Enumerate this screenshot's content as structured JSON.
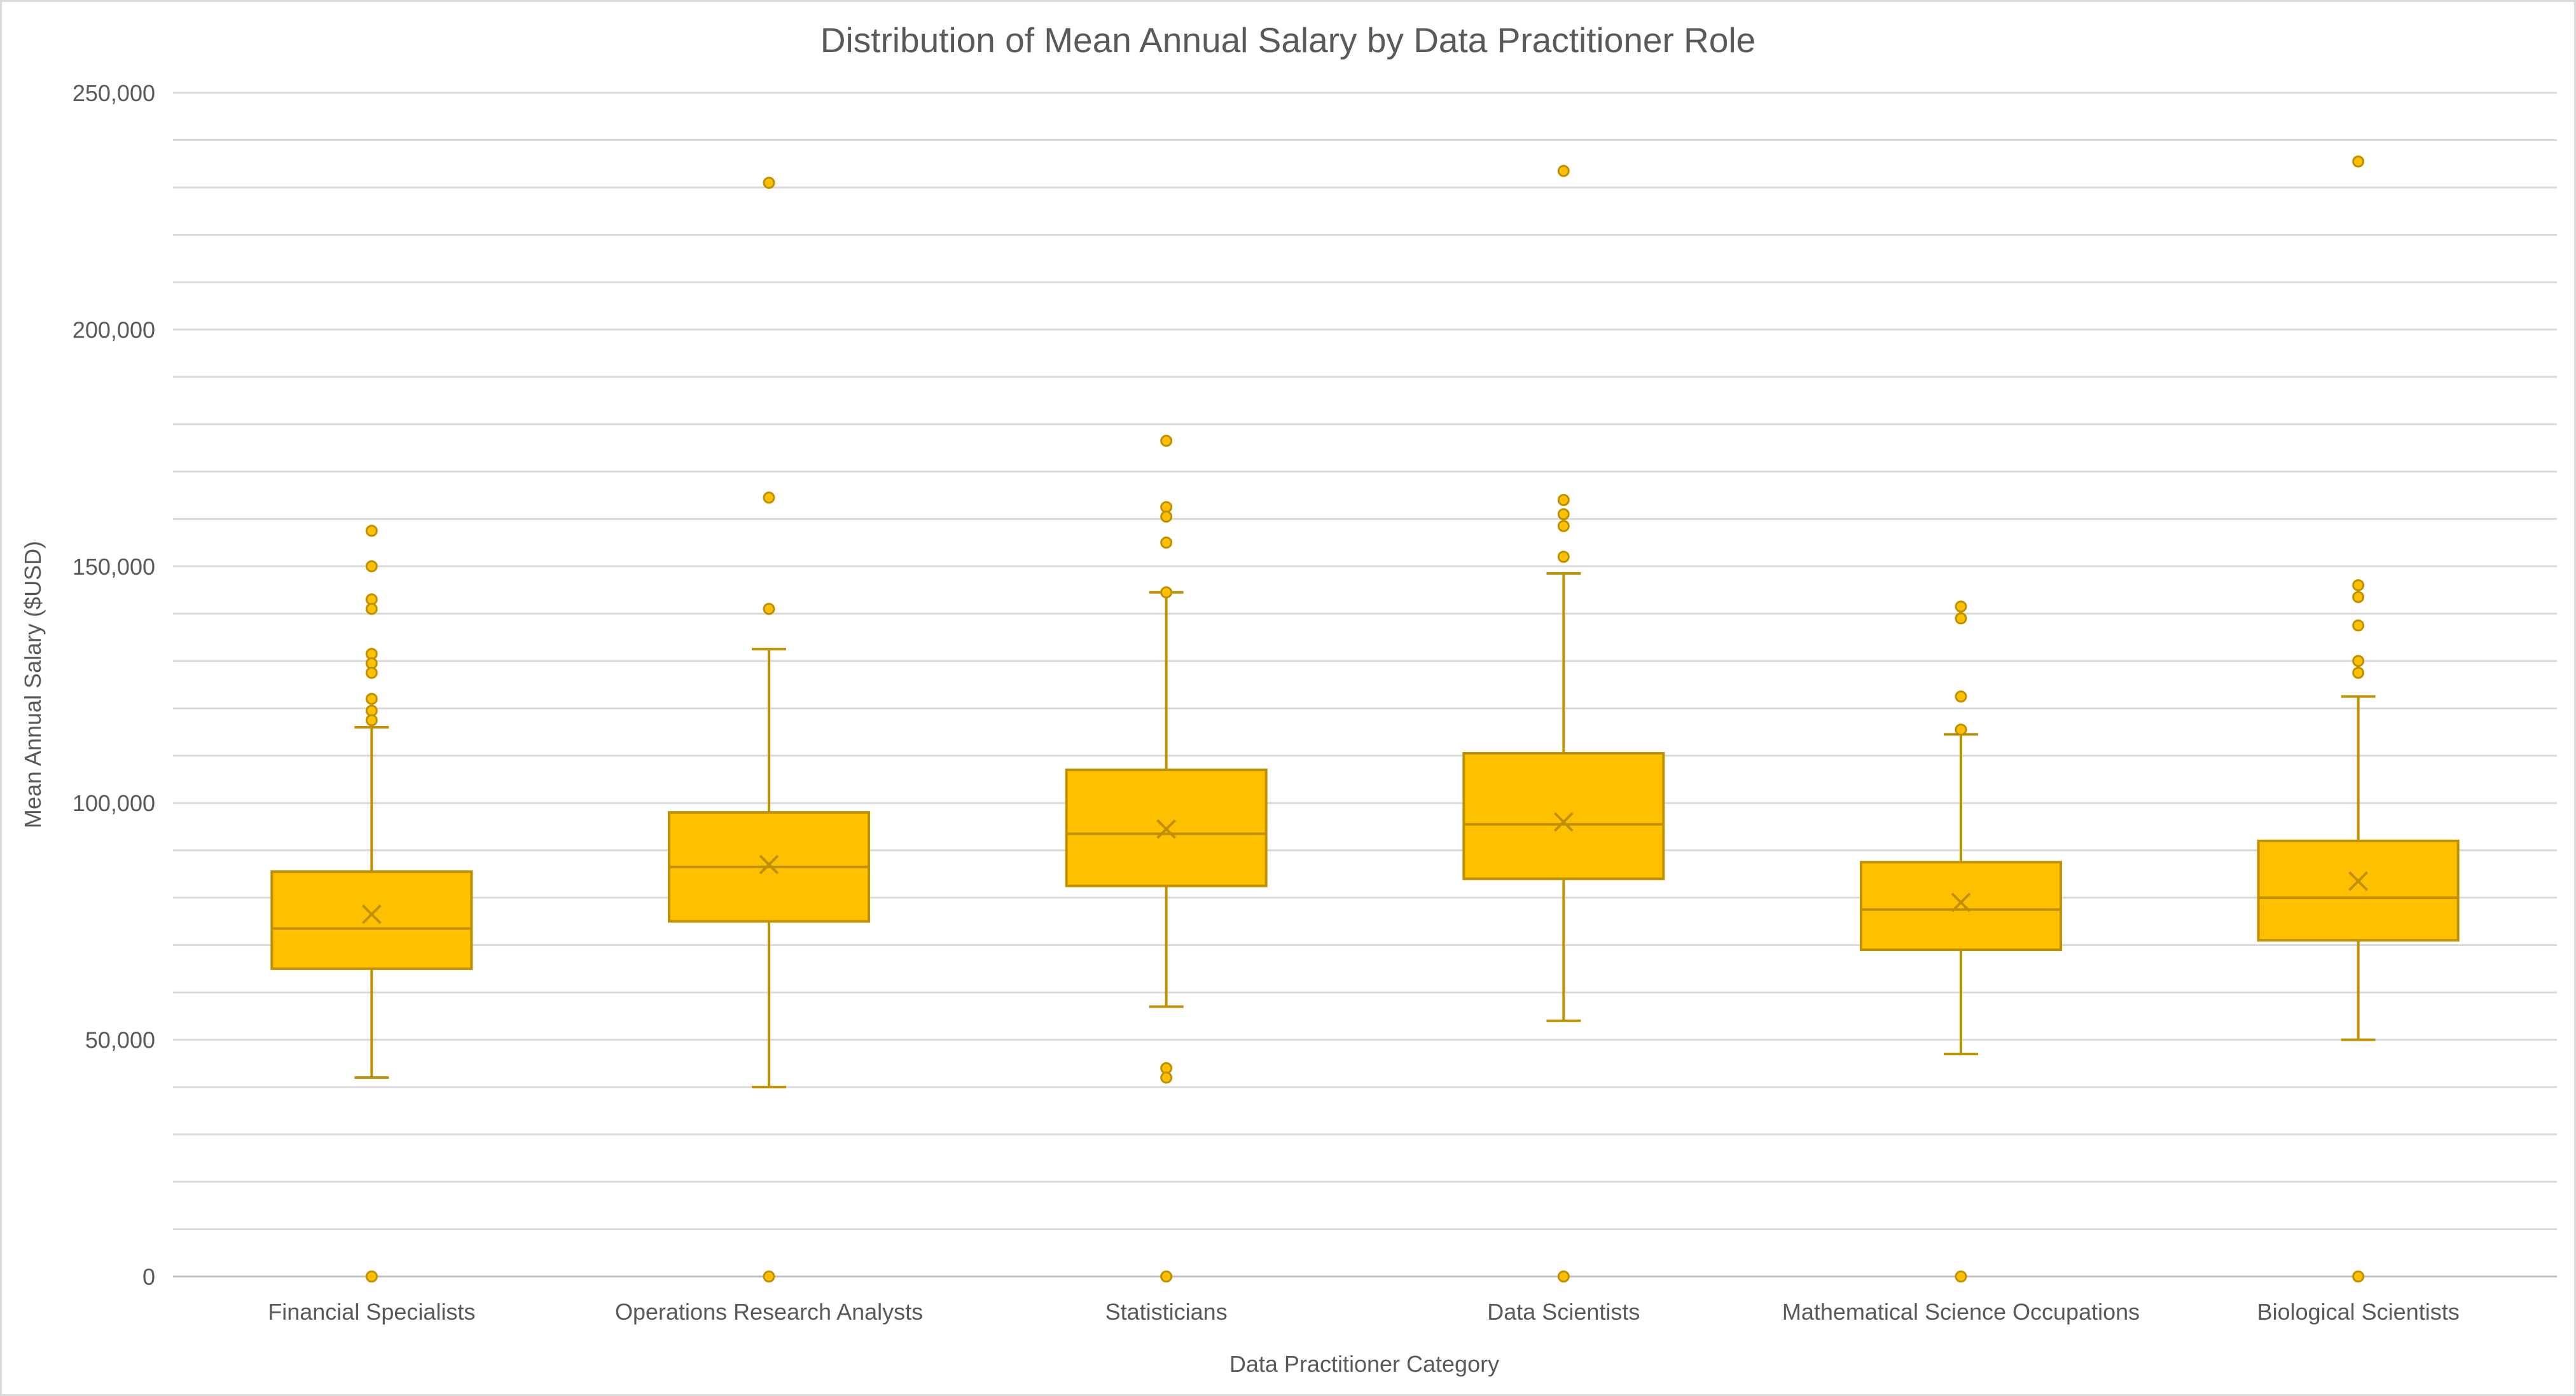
{
  "chart_data": {
    "type": "box",
    "title": "Distribution of Mean Annual Salary by Data Practitioner Role",
    "xlabel": "Data Practitioner Category",
    "ylabel": "Mean Annual Salary ($USD)",
    "ylim": [
      0,
      250000
    ],
    "y_major_step": 50000,
    "y_minor_step": 10000,
    "y_tick_labels": [
      "0",
      "50,000",
      "100,000",
      "150,000",
      "200,000",
      "250,000"
    ],
    "grid": true,
    "legend": "none",
    "colors": {
      "box_fill": "#FFC000",
      "box_stroke": "#BF9000",
      "grid": "#D9D9D9",
      "text": "#595959"
    },
    "categories": [
      "Financial Specialists",
      "Operations Research Analysts",
      "Statisticians",
      "Data Scientists",
      "Mathematical Science Occupations",
      "Biological Scientists"
    ],
    "boxes": [
      {
        "whisker_low": 42000,
        "q1": 65000,
        "median": 73500,
        "q3": 85500,
        "whisker_high": 116000,
        "mean": 76500,
        "outliers": [
          157500,
          150000,
          143000,
          141000,
          131500,
          129500,
          127500,
          122000,
          119500,
          117500,
          0
        ]
      },
      {
        "whisker_low": 40000,
        "q1": 75000,
        "median": 86500,
        "q3": 98000,
        "whisker_high": 132500,
        "mean": 87000,
        "outliers": [
          231000,
          164500,
          141000,
          0
        ]
      },
      {
        "whisker_low": 57000,
        "q1": 82500,
        "median": 93500,
        "q3": 107000,
        "whisker_high": 144500,
        "mean": 94500,
        "outliers": [
          176500,
          162500,
          160500,
          155000,
          144500,
          44000,
          42000,
          0
        ]
      },
      {
        "whisker_low": 54000,
        "q1": 84000,
        "median": 95500,
        "q3": 110500,
        "whisker_high": 148500,
        "mean": 96000,
        "outliers": [
          233500,
          164000,
          161000,
          158500,
          152000,
          0
        ]
      },
      {
        "whisker_low": 47000,
        "q1": 69000,
        "median": 77500,
        "q3": 87500,
        "whisker_high": 114500,
        "mean": 79000,
        "outliers": [
          141500,
          139000,
          122500,
          115500,
          0
        ]
      },
      {
        "whisker_low": 50000,
        "q1": 71000,
        "median": 80000,
        "q3": 92000,
        "whisker_high": 122500,
        "mean": 83500,
        "outliers": [
          235500,
          146000,
          143500,
          137500,
          130000,
          127500,
          0
        ]
      }
    ]
  }
}
